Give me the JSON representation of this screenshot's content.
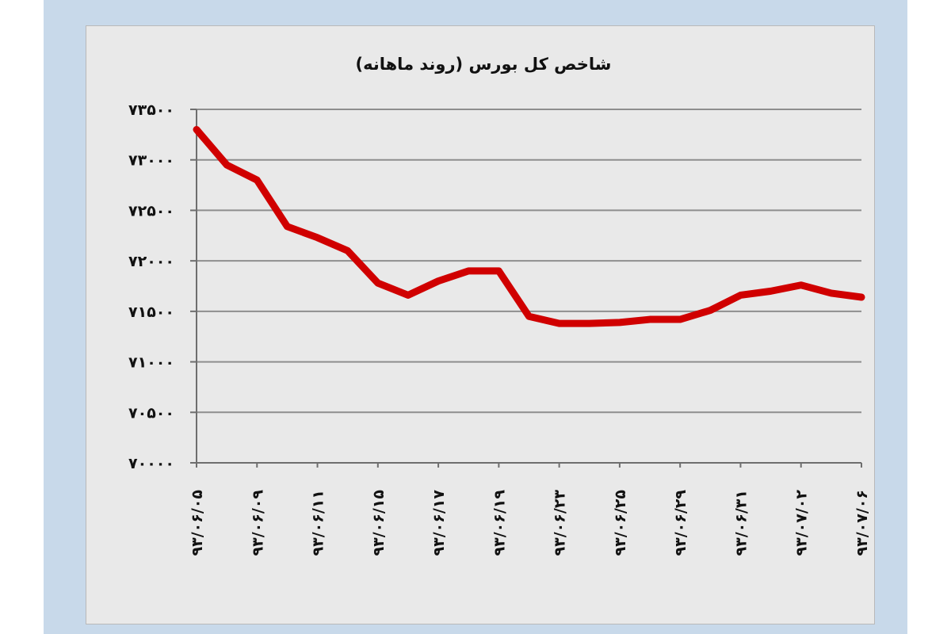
{
  "chart_data": {
    "type": "line",
    "title": "شاخص کل بورس (روند ماهانه)",
    "xlabel": "",
    "ylabel": "",
    "ylim": [
      70000,
      73500
    ],
    "yticks": [
      70000,
      70500,
      71000,
      71500,
      72000,
      72500,
      73000,
      73500
    ],
    "ytick_labels": [
      "۷۰۰۰۰",
      "۷۰۵۰۰",
      "۷۱۰۰۰",
      "۷۱۵۰۰",
      "۷۲۰۰۰",
      "۷۲۵۰۰",
      "۷۳۰۰۰",
      "۷۳۵۰۰"
    ],
    "categories": [
      "۹۳/۰۶/۰۵",
      "۹۳/۰۶/۰۹",
      "۹۳/۰۶/۱۱",
      "۹۳/۰۶/۱۵",
      "۹۳/۰۶/۱۷",
      "۹۳/۰۶/۱۹",
      "۹۳/۰۶/۲۳",
      "۹۳/۰۶/۲۵",
      "۹۳/۰۶/۲۹",
      "۹۳/۰۶/۳۱",
      "۹۳/۰۷/۰۲",
      "۹۳/۰۷/۰۶"
    ],
    "x": [
      0,
      0.5,
      1,
      1.5,
      2,
      2.5,
      3,
      3.5,
      4,
      4.5,
      5,
      5.5,
      6,
      6.5,
      7,
      7.5,
      8,
      8.5,
      9,
      9.5,
      10,
      10.5,
      11
    ],
    "series": [
      {
        "values": [
          73300,
          72950,
          72800,
          72340,
          72230,
          72100,
          71780,
          71660,
          71800,
          71900,
          71900,
          71450,
          71380,
          71380,
          71390,
          71420,
          71420,
          71510,
          71660,
          71700,
          71760,
          71680,
          71640
        ],
        "color": "#d00000"
      }
    ],
    "grid": true,
    "legend": "none"
  }
}
